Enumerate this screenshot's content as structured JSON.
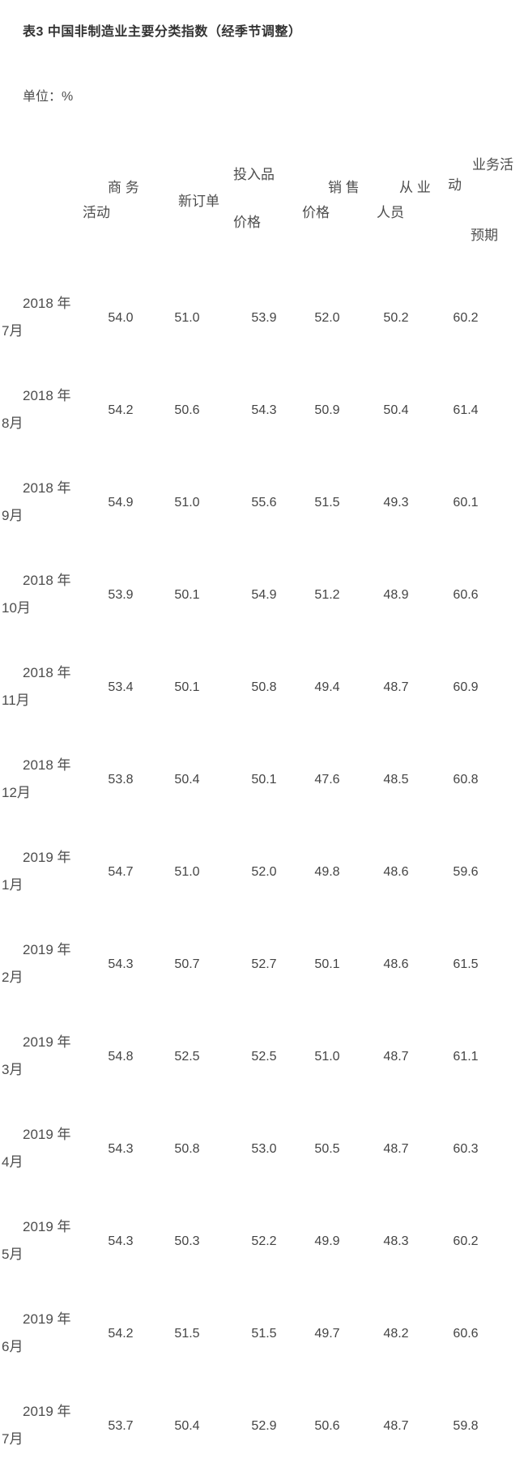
{
  "page": {
    "title": "表3 中国非制造业主要分类指数（经季节调整）",
    "unit_label": "单位：%"
  },
  "table": {
    "header": {
      "business_activity": {
        "line1": "商 务",
        "line2": "活动"
      },
      "new_orders": {
        "line1": "新订单"
      },
      "input_prices": {
        "line1": "投入品",
        "line2": "价格"
      },
      "selling_prices": {
        "line1": "销 售",
        "line2": "价格"
      },
      "employment": {
        "line1": "从 业",
        "line2": "人员"
      },
      "business_expectation": {
        "line1": "业务活",
        "line2": "动",
        "line3": "预期"
      }
    },
    "rows": [
      {
        "year": "2018 年",
        "month": "7月",
        "values": [
          "54.0",
          "51.0",
          "53.9",
          "52.0",
          "50.2",
          "60.2"
        ]
      },
      {
        "year": "2018 年",
        "month": "8月",
        "values": [
          "54.2",
          "50.6",
          "54.3",
          "50.9",
          "50.4",
          "61.4"
        ]
      },
      {
        "year": "2018 年",
        "month": "9月",
        "values": [
          "54.9",
          "51.0",
          "55.6",
          "51.5",
          "49.3",
          "60.1"
        ]
      },
      {
        "year": "2018 年",
        "month": "10月",
        "values": [
          "53.9",
          "50.1",
          "54.9",
          "51.2",
          "48.9",
          "60.6"
        ]
      },
      {
        "year": "2018 年",
        "month": "11月",
        "values": [
          "53.4",
          "50.1",
          "50.8",
          "49.4",
          "48.7",
          "60.9"
        ]
      },
      {
        "year": "2018 年",
        "month": "12月",
        "values": [
          "53.8",
          "50.4",
          "50.1",
          "47.6",
          "48.5",
          "60.8"
        ]
      },
      {
        "year": "2019 年",
        "month": "1月",
        "values": [
          "54.7",
          "51.0",
          "52.0",
          "49.8",
          "48.6",
          "59.6"
        ]
      },
      {
        "year": "2019 年",
        "month": "2月",
        "values": [
          "54.3",
          "50.7",
          "52.7",
          "50.1",
          "48.6",
          "61.5"
        ]
      },
      {
        "year": "2019 年",
        "month": "3月",
        "values": [
          "54.8",
          "52.5",
          "52.5",
          "51.0",
          "48.7",
          "61.1"
        ]
      },
      {
        "year": "2019 年",
        "month": "4月",
        "values": [
          "54.3",
          "50.8",
          "53.0",
          "50.5",
          "48.7",
          "60.3"
        ]
      },
      {
        "year": "2019 年",
        "month": "5月",
        "values": [
          "54.3",
          "50.3",
          "52.2",
          "49.9",
          "48.3",
          "60.2"
        ]
      },
      {
        "year": "2019 年",
        "month": "6月",
        "values": [
          "54.2",
          "51.5",
          "51.5",
          "49.7",
          "48.2",
          "60.6"
        ]
      },
      {
        "year": "2019 年",
        "month": "7月",
        "values": [
          "53.7",
          "50.4",
          "52.9",
          "50.6",
          "48.7",
          "59.8"
        ]
      }
    ]
  },
  "chart_data": {
    "type": "table",
    "title": "表3 中国非制造业主要分类指数（经季节调整）",
    "unit": "%",
    "categories": [
      "2018年7月",
      "2018年8月",
      "2018年9月",
      "2018年10月",
      "2018年11月",
      "2018年12月",
      "2019年1月",
      "2019年2月",
      "2019年3月",
      "2019年4月",
      "2019年5月",
      "2019年6月",
      "2019年7月"
    ],
    "series": [
      {
        "name": "商务活动",
        "values": [
          54.0,
          54.2,
          54.9,
          53.9,
          53.4,
          53.8,
          54.7,
          54.3,
          54.8,
          54.3,
          54.3,
          54.2,
          53.7
        ]
      },
      {
        "name": "新订单",
        "values": [
          51.0,
          50.6,
          51.0,
          50.1,
          50.1,
          50.4,
          51.0,
          50.7,
          52.5,
          50.8,
          50.3,
          51.5,
          50.4
        ]
      },
      {
        "name": "投入品价格",
        "values": [
          53.9,
          54.3,
          55.6,
          54.9,
          50.8,
          50.1,
          52.0,
          52.7,
          52.5,
          53.0,
          52.2,
          51.5,
          52.9
        ]
      },
      {
        "name": "销售价格",
        "values": [
          52.0,
          50.9,
          51.5,
          51.2,
          49.4,
          47.6,
          49.8,
          50.1,
          51.0,
          50.5,
          49.9,
          49.7,
          50.6
        ]
      },
      {
        "name": "从业人员",
        "values": [
          50.2,
          50.4,
          49.3,
          48.9,
          48.7,
          48.5,
          48.6,
          48.6,
          48.7,
          48.7,
          48.3,
          48.2,
          48.7
        ]
      },
      {
        "name": "业务活动预期",
        "values": [
          60.2,
          61.4,
          60.1,
          60.6,
          60.9,
          60.8,
          59.6,
          61.5,
          61.1,
          60.3,
          60.2,
          60.6,
          59.8
        ]
      }
    ]
  }
}
